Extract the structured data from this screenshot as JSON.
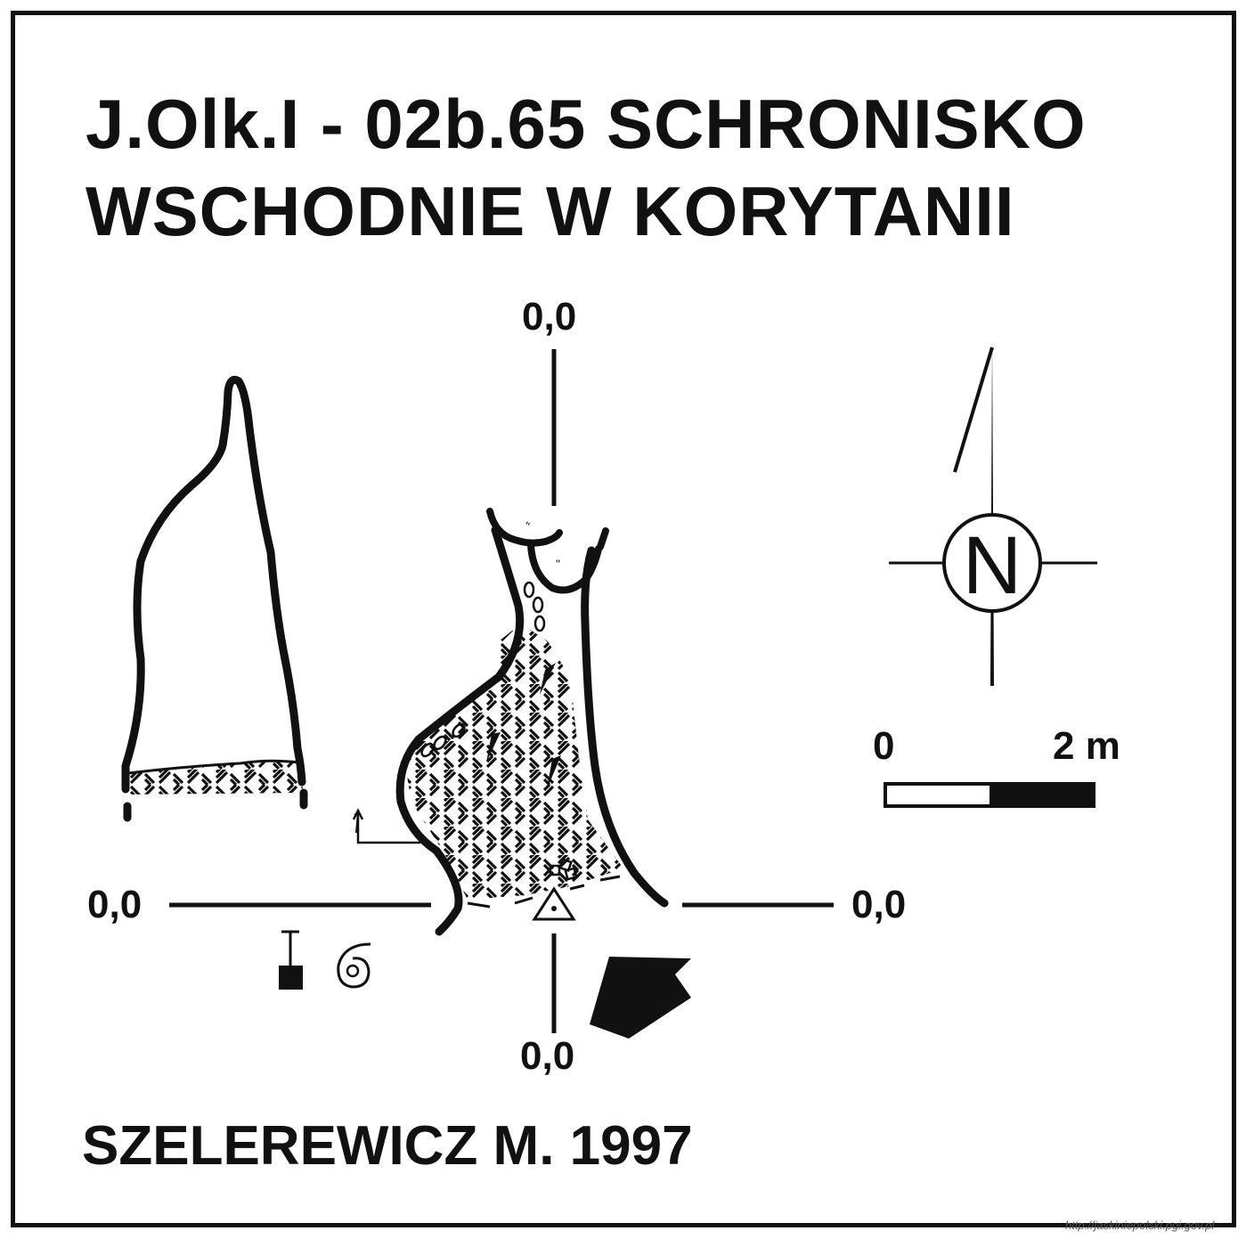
{
  "map": {
    "title_line_1": "J.Olk.I - 02b.65  SCHRONISKO",
    "title_line_2": "WSCHODNIE W KORYTANII",
    "coordinates": {
      "top": "0,0",
      "left": "0,0",
      "right": "0,0",
      "bottom": "0,0"
    },
    "north_letter": "N",
    "scale": {
      "start": "0",
      "end": "2 m"
    },
    "author": "SZELEREWICZ M. 1997",
    "credit": "http://jaskiniepolski.pgi.gov.pl"
  }
}
